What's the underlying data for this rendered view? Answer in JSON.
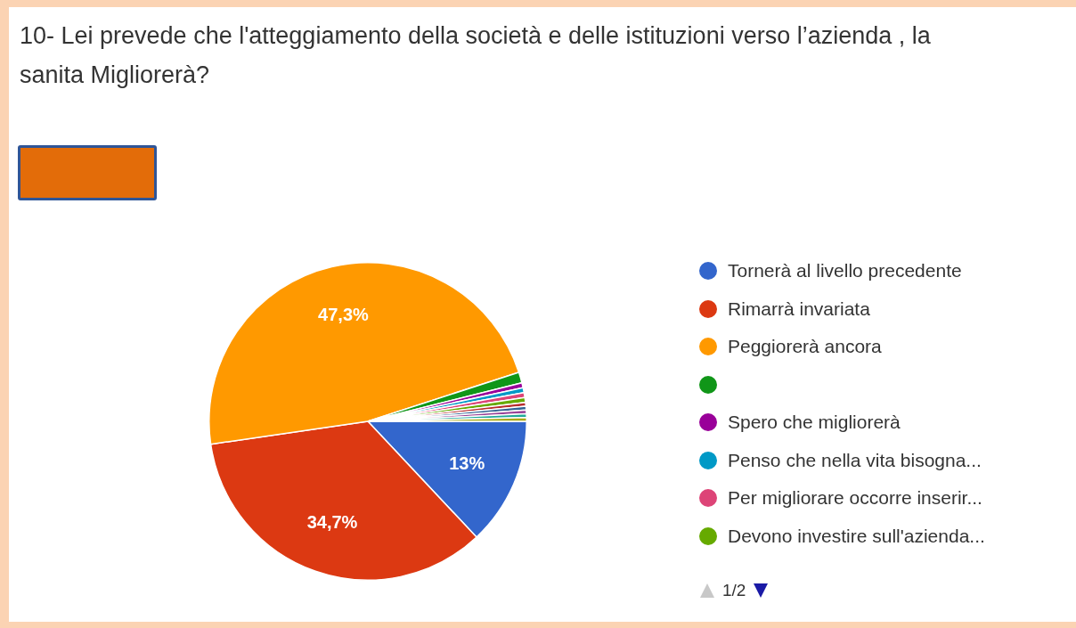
{
  "chart_data": {
    "type": "pie",
    "title": "10- Lei prevede che l'atteggiamento della società e delle istituzioni verso l’azienda , la sanita Migliorerà?",
    "categories": [
      "Tornerà al livello precedente",
      "Rimarrà invariata",
      "Peggiorerà ancora",
      null,
      "Spero che migliorerà",
      "Penso che nella vita bisogna...",
      "Per migliorare occorre inserir...",
      "Devono investire sull'azienda...",
      null,
      null,
      null,
      null,
      null
    ],
    "values": [
      13,
      34.7,
      47.3,
      1.1,
      0.5,
      0.5,
      0.5,
      0.5,
      0.38,
      0.38,
      0.38,
      0.38,
      0.38
    ],
    "colors": [
      "#3366cc",
      "#dc3912",
      "#ff9900",
      "#109618",
      "#990099",
      "#0099c6",
      "#dd4477",
      "#66aa00",
      "#b82e2e",
      "#316395",
      "#994499",
      "#22aa99",
      "#aaaa11"
    ],
    "value_labels": [
      "13%",
      "34,7%",
      "47,3%",
      null,
      null,
      null,
      null,
      null,
      null,
      null,
      null,
      null,
      null
    ],
    "legend": "right",
    "annotations": [
      "1/2"
    ]
  }
}
